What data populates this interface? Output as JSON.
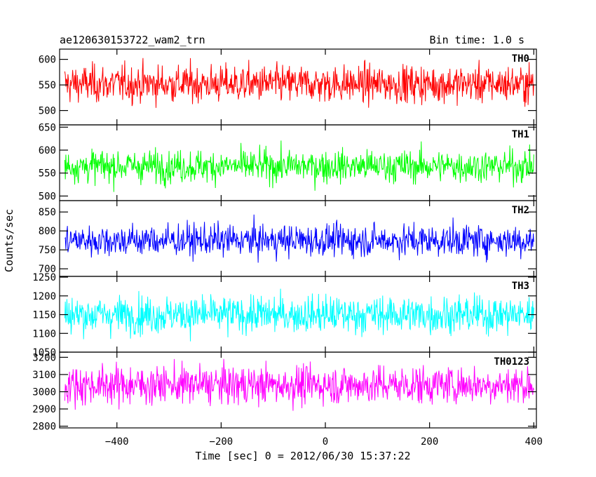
{
  "header": {
    "title": "ae120630153722_wam2_trn",
    "bin_time": "Bin time: 1.0 s"
  },
  "chart_data": {
    "type": "line",
    "xlabel": "Time [sec] 0 = 2012/06/30 15:37:22",
    "ylabel": "Counts/sec",
    "xlim": [
      -510,
      405
    ],
    "data_x_range": [
      -500,
      400
    ],
    "x_ticks": [
      -400,
      -200,
      0,
      200,
      400
    ],
    "x_tick_labels": [
      "−400",
      "−200",
      "0",
      "200",
      "400"
    ],
    "panels": [
      {
        "name": "TH0",
        "color": "#ff0000",
        "ylim": [
          472,
          620
        ],
        "y_ticks": [
          500,
          550,
          600
        ],
        "y_tick_labels": [
          "500",
          "550",
          "600"
        ],
        "mean": 552,
        "amplitude": 62
      },
      {
        "name": "TH1",
        "color": "#00ff00",
        "ylim": [
          490,
          655
        ],
        "y_ticks": [
          500,
          550,
          600,
          650
        ],
        "y_tick_labels": [
          "500",
          "550",
          "600",
          "650"
        ],
        "mean": 565,
        "amplitude": 60
      },
      {
        "name": "TH2",
        "color": "#0000ff",
        "ylim": [
          680,
          880
        ],
        "y_ticks": [
          700,
          750,
          800,
          850
        ],
        "y_tick_labels": [
          "700",
          "750",
          "800",
          "850"
        ],
        "mean": 775,
        "amplitude": 72
      },
      {
        "name": "TH3",
        "color": "#00ffff",
        "ylim": [
          1050,
          1252
        ],
        "y_ticks": [
          1050,
          1100,
          1150,
          1200,
          1250
        ],
        "y_tick_labels": [
          "1050",
          "1100",
          "1150",
          "1200",
          "1250"
        ],
        "mean": 1150,
        "amplitude": 85
      },
      {
        "name": "TH0123",
        "color": "#ff00ff",
        "ylim": [
          2790,
          3230
        ],
        "y_ticks": [
          2800,
          2900,
          3000,
          3100,
          3200
        ],
        "y_tick_labels": [
          "2800",
          "2900",
          "3000",
          "3100",
          "3200"
        ],
        "mean": 3040,
        "amplitude": 190
      }
    ]
  }
}
